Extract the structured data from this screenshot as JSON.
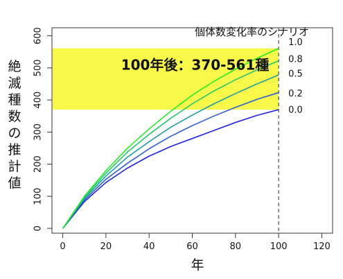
{
  "chart_data": {
    "type": "line",
    "title": "",
    "xlabel": "年",
    "ylabel": "絶滅種数の推計値",
    "xlim": [
      -5,
      125
    ],
    "ylim": [
      -15,
      625
    ],
    "x_ticks": [
      0,
      20,
      40,
      60,
      80,
      100,
      120
    ],
    "y_ticks": [
      0,
      100,
      200,
      300,
      400,
      500,
      600
    ],
    "grid": false,
    "legend": {
      "title": "個体数変化率のシナリオ",
      "placement": "top-right"
    },
    "highlight_band": {
      "y_range": [
        370,
        561
      ],
      "color": "#f8f84a"
    },
    "annotation": {
      "text": "100年後：370-561種",
      "x": 27,
      "y": 494
    },
    "vline": {
      "x": 100,
      "style": "dashed",
      "color": "#777777"
    },
    "x": [
      0,
      10,
      20,
      30,
      40,
      50,
      60,
      70,
      80,
      90,
      100
    ],
    "series": [
      {
        "name": "1.0",
        "color": "#22ee22",
        "label_y": 578,
        "values": [
          0,
          100,
          180,
          250,
          310,
          365,
          415,
          458,
          496,
          530,
          561
        ]
      },
      {
        "name": "0.8",
        "color": "#22c86a",
        "label_y": 526,
        "values": [
          0,
          97,
          172,
          238,
          293,
          343,
          388,
          428,
          463,
          494,
          522
        ]
      },
      {
        "name": "0.5",
        "color": "#1e9ea6",
        "label_y": 480,
        "values": [
          0,
          93,
          163,
          222,
          270,
          315,
          353,
          388,
          420,
          450,
          478
        ]
      },
      {
        "name": "0.2",
        "color": "#2a5fd6",
        "label_y": 418,
        "values": [
          0,
          88,
          153,
          203,
          248,
          287,
          320,
          350,
          377,
          402,
          423
        ]
      },
      {
        "name": "0.0",
        "color": "#2222ee",
        "label_y": 368,
        "values": [
          0,
          83,
          143,
          188,
          225,
          255,
          280,
          305,
          330,
          352,
          370
        ]
      }
    ]
  }
}
